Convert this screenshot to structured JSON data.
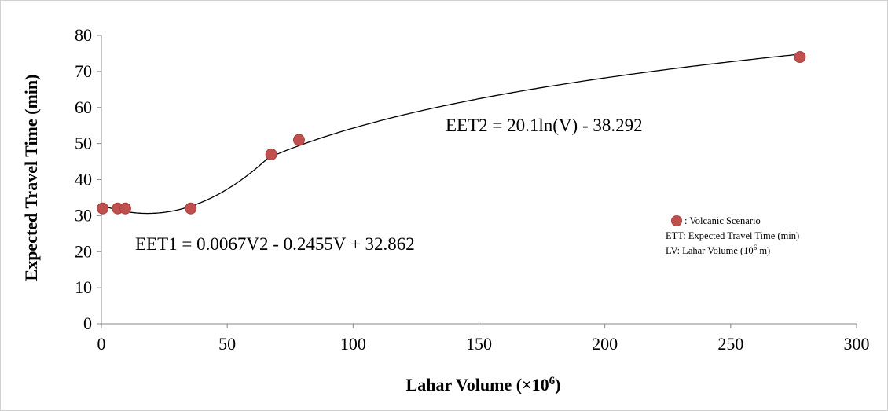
{
  "chart_data": {
    "type": "scatter",
    "xlabel": "Lahar Volume (×10",
    "xlabel_sup": "6",
    "xlabel_end": ")",
    "ylabel": "Expected Travel Time (min)",
    "xlim": [
      0,
      300
    ],
    "ylim": [
      0,
      80
    ],
    "x_ticks": [
      0,
      50,
      100,
      150,
      200,
      250,
      300
    ],
    "y_ticks": [
      0,
      10,
      20,
      30,
      40,
      50,
      60,
      70,
      80
    ],
    "grid": false,
    "marker_color": "#c0504d",
    "series": [
      {
        "name": "Volcanic Scenario",
        "points": [
          {
            "x": 0.5,
            "y": 32
          },
          {
            "x": 6.5,
            "y": 32
          },
          {
            "x": 9.5,
            "y": 32
          },
          {
            "x": 35.5,
            "y": 32
          },
          {
            "x": 67.5,
            "y": 47
          },
          {
            "x": 78.5,
            "y": 51
          },
          {
            "x": 277.5,
            "y": 74
          }
        ]
      }
    ],
    "annotations": {
      "eq1": "EET1 = 0.0067V2 - 0.2455V + 32.862",
      "eq2": "EET2 = 20.1ln(V) - 38.292"
    },
    "legend": {
      "position": "right",
      "marker_label": ": Volcanic Scenario",
      "line1": "ETT: Expected Travel Time (min)",
      "line2_prefix": "LV: Lahar Volume  (10",
      "line2_sup": "6",
      "line2_suffix": " m)"
    }
  }
}
